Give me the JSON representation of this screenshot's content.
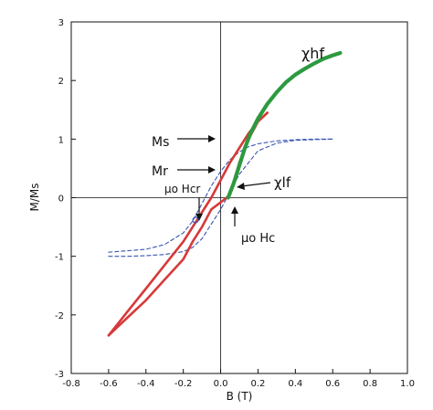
{
  "chart_data": {
    "type": "line",
    "xlabel": "B (T)",
    "ylabel": "M/Ms",
    "xlim": [
      -0.8,
      1.0
    ],
    "ylim": [
      -3,
      3
    ],
    "x_ticks": [
      -0.8,
      -0.6,
      -0.4,
      -0.2,
      0,
      0.2,
      0.4,
      0.6,
      0.8,
      1.0
    ],
    "x_tick_labels": [
      "-0.8",
      "-0.6",
      "-0.4",
      "-0.2",
      "0.0",
      "0.2",
      "0.4",
      "0.6",
      "0.8",
      "1.0"
    ],
    "y_ticks": [
      -3,
      -2,
      -1,
      0,
      1,
      2,
      3
    ],
    "y_tick_labels": [
      "-3",
      "-2",
      "-1",
      "0",
      "1",
      "2",
      "3"
    ],
    "grid": false,
    "colors": {
      "upper_branch": "#d63a3a",
      "lower_branch": "#d63a3a",
      "ferro": "#3a55b0",
      "hf": "#2c9a3f"
    },
    "series": [
      {
        "key": "upper_branch",
        "x": [
          -0.6,
          -0.5,
          -0.4,
          -0.3,
          -0.2,
          -0.15,
          -0.1,
          -0.05,
          0.0,
          0.05,
          0.1,
          0.15,
          0.2,
          0.25
        ],
        "y": [
          -2.35,
          -1.95,
          -1.55,
          -1.15,
          -0.75,
          -0.5,
          -0.25,
          0.0,
          0.3,
          0.6,
          0.85,
          1.1,
          1.3,
          1.45
        ]
      },
      {
        "key": "lower_branch",
        "x": [
          -0.6,
          -0.5,
          -0.4,
          -0.3,
          -0.2,
          -0.15,
          -0.1,
          -0.05,
          0.0,
          0.05,
          0.1,
          0.15,
          0.2,
          0.25
        ],
        "y": [
          -2.35,
          -2.05,
          -1.75,
          -1.4,
          -1.05,
          -0.75,
          -0.5,
          -0.2,
          -0.08,
          0.05,
          0.6,
          1.0,
          1.3,
          1.45
        ]
      },
      {
        "key": "ferro_upper",
        "x": [
          -0.6,
          -0.4,
          -0.3,
          -0.2,
          -0.15,
          -0.1,
          -0.05,
          0.0,
          0.05,
          0.1,
          0.15,
          0.2,
          0.3,
          0.4,
          0.5,
          0.6
        ],
        "y": [
          -0.93,
          -0.88,
          -0.8,
          -0.6,
          -0.4,
          -0.1,
          0.2,
          0.45,
          0.65,
          0.78,
          0.87,
          0.92,
          0.97,
          0.99,
          1.0,
          1.0
        ]
      },
      {
        "key": "ferro_lower",
        "x": [
          -0.6,
          -0.5,
          -0.4,
          -0.3,
          -0.2,
          -0.15,
          -0.1,
          -0.05,
          0.0,
          0.05,
          0.1,
          0.15,
          0.2,
          0.3,
          0.4,
          0.6
        ],
        "y": [
          -1.0,
          -1.0,
          -0.99,
          -0.97,
          -0.92,
          -0.85,
          -0.7,
          -0.45,
          -0.2,
          0.1,
          0.4,
          0.6,
          0.8,
          0.93,
          0.98,
          1.0
        ]
      },
      {
        "key": "hf",
        "x": [
          0.04,
          0.07,
          0.1,
          0.13,
          0.16,
          0.2,
          0.25,
          0.3,
          0.35,
          0.4,
          0.45,
          0.5,
          0.55,
          0.6,
          0.64
        ],
        "y": [
          0.0,
          0.25,
          0.55,
          0.85,
          1.1,
          1.35,
          1.6,
          1.8,
          1.97,
          2.1,
          2.2,
          2.29,
          2.37,
          2.43,
          2.47
        ]
      }
    ],
    "annotations": {
      "ms_label": "Ms",
      "mr_label": "Mr",
      "chi_hf_label": "χhf",
      "chi_lf_label": "χlf",
      "mu0_hcr_label": "μo Hcr",
      "mu0_hc_label": "μo Hc"
    }
  }
}
